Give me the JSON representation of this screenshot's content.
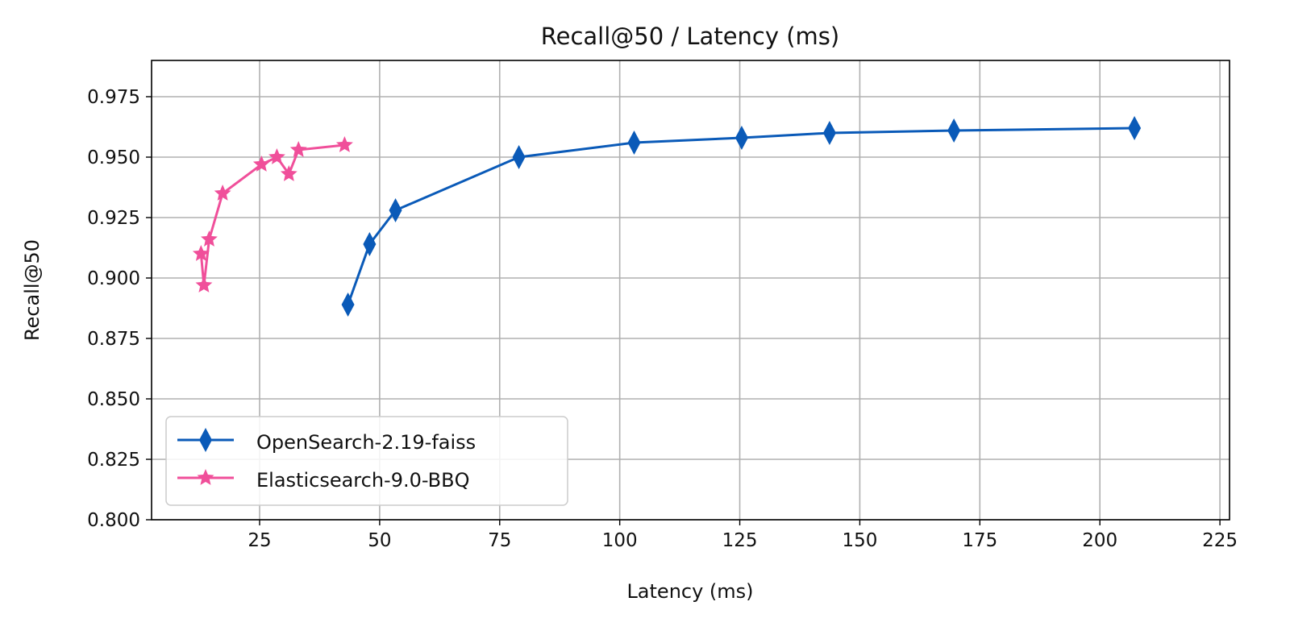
{
  "chart_data": {
    "type": "line",
    "title": "Recall@50 / Latency (ms)",
    "xlabel": "Latency (ms)",
    "ylabel": "Recall@50",
    "xlim": [
      2.5,
      227
    ],
    "ylim": [
      0.8,
      0.99
    ],
    "xticks": [
      25,
      50,
      75,
      100,
      125,
      150,
      175,
      200,
      225
    ],
    "yticks": [
      0.8,
      0.825,
      0.85,
      0.875,
      0.9,
      0.925,
      0.95,
      0.975
    ],
    "ytick_labels": [
      "0.800",
      "0.825",
      "0.850",
      "0.875",
      "0.900",
      "0.925",
      "0.950",
      "0.975"
    ],
    "grid": true,
    "legend_placement": "lower-left",
    "series": [
      {
        "name": "OpenSearch-2.19-faiss",
        "color": "#0a5ab8",
        "marker": "thin-diamond",
        "x": [
          43.4,
          47.9,
          53.3,
          79.0,
          103.0,
          125.4,
          143.7,
          169.6,
          207.2
        ],
        "y": [
          0.889,
          0.914,
          0.928,
          0.95,
          0.956,
          0.958,
          0.96,
          0.961,
          0.962
        ]
      },
      {
        "name": "Elasticsearch-9.0-BBQ",
        "color": "#f04f9a",
        "marker": "star",
        "x": [
          12.8,
          13.4,
          14.5,
          17.3,
          25.4,
          28.6,
          31.1,
          33.1,
          42.7
        ],
        "y": [
          0.91,
          0.897,
          0.916,
          0.935,
          0.947,
          0.95,
          0.943,
          0.953,
          0.955
        ]
      }
    ]
  }
}
